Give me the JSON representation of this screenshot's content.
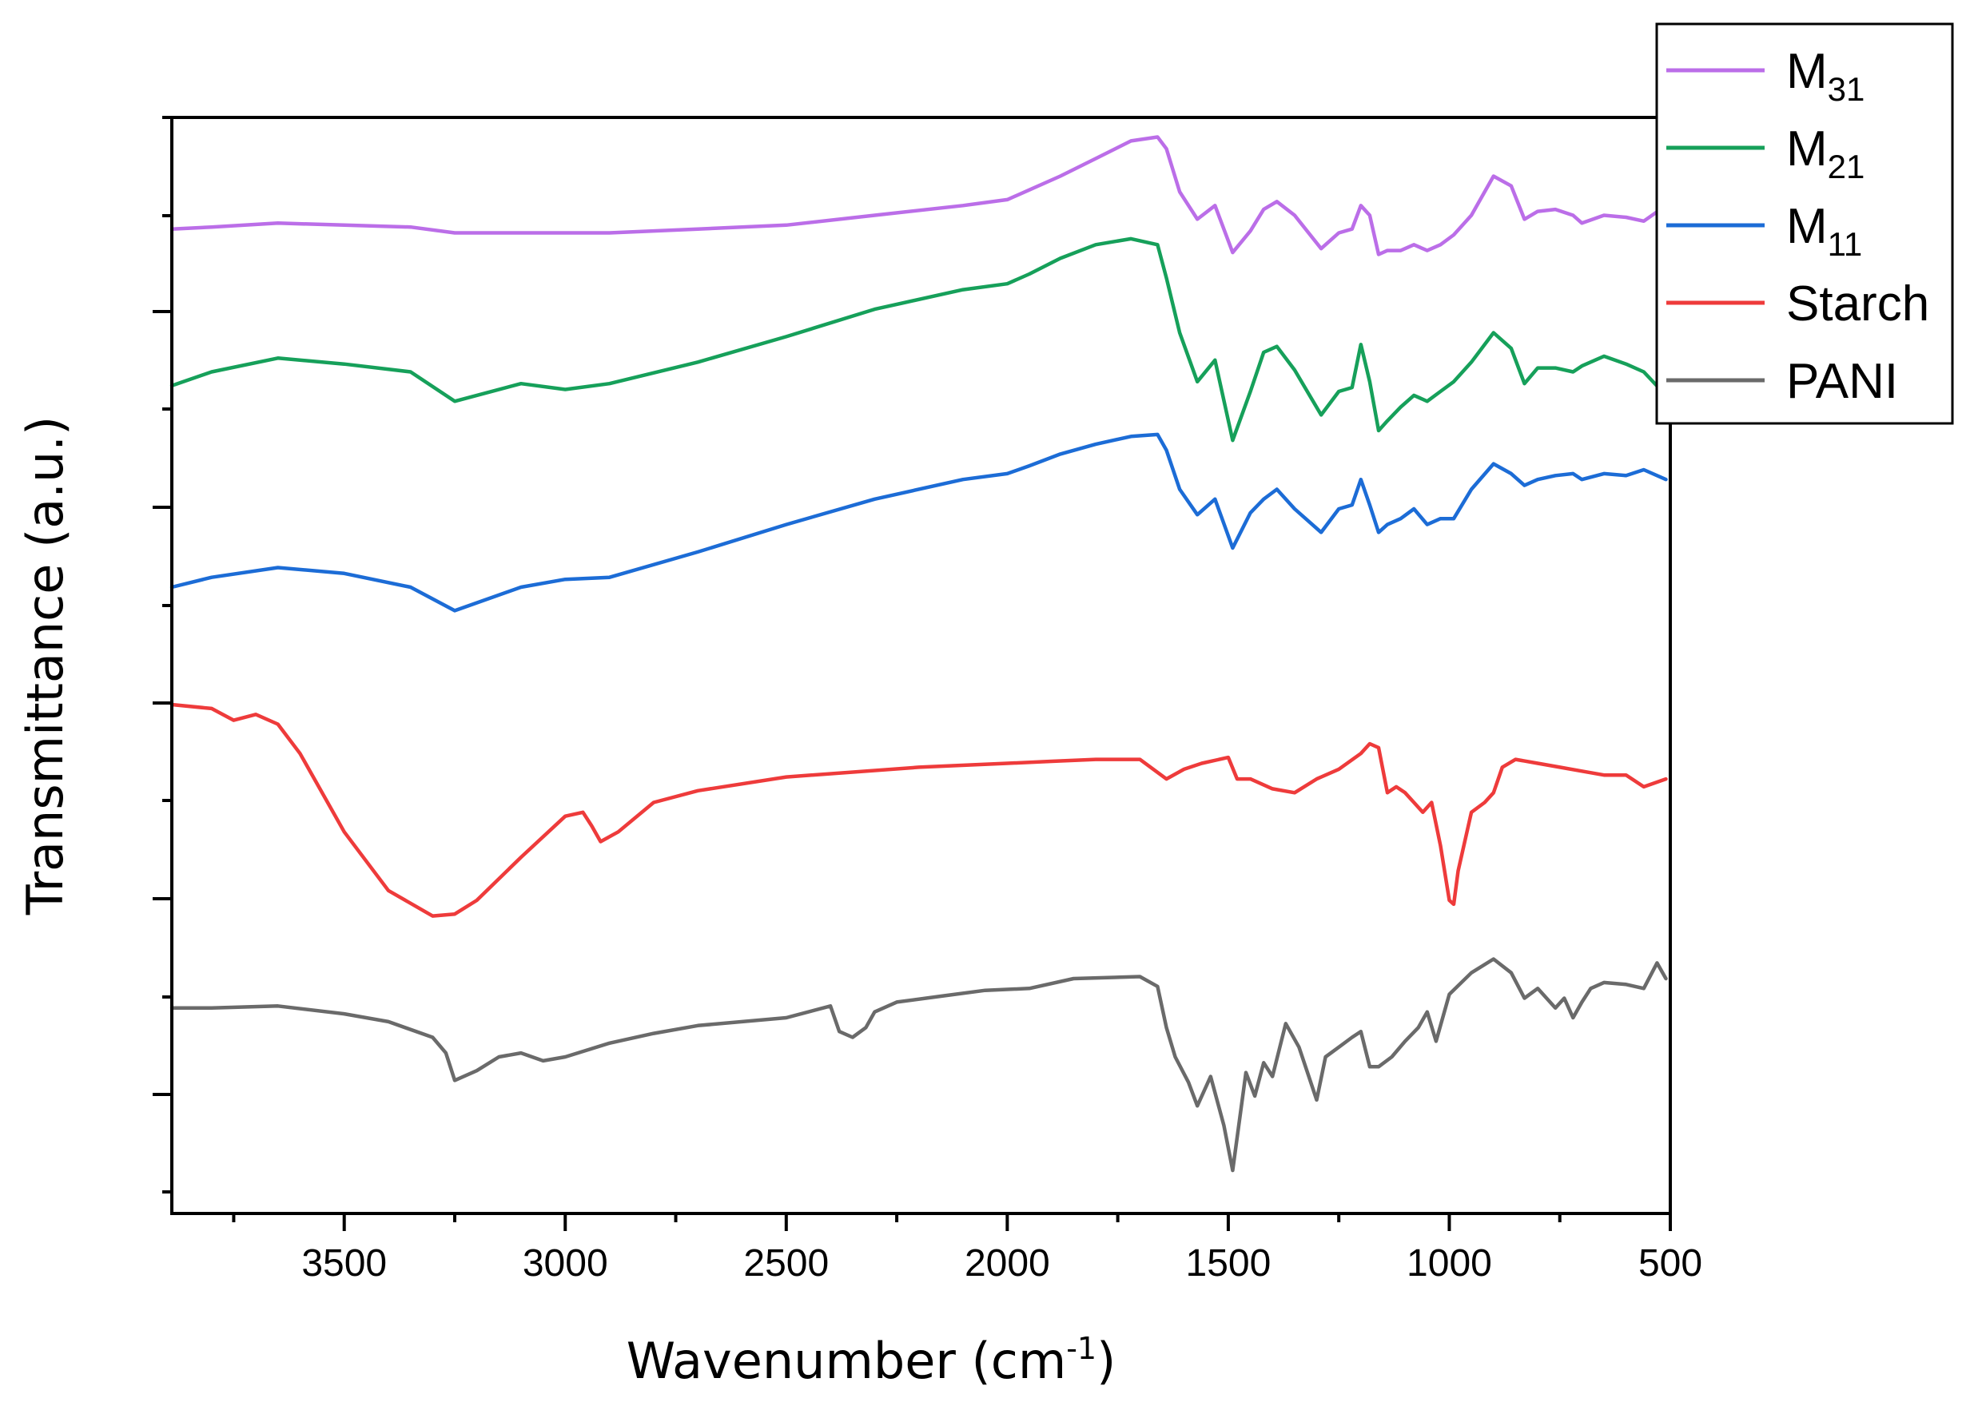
{
  "chart_data": {
    "type": "line",
    "xlabel": "Wavenumber (cm",
    "xlabel_sup": "-1",
    "xlabel_end": ")",
    "ylabel": "Transmittance (a.u.)",
    "xlim": [
      3890,
      500
    ],
    "x_ticks": [
      3500,
      3000,
      2500,
      2000,
      1500,
      1000,
      500
    ],
    "x_tick_labels": [
      "3500",
      "3000",
      "2500",
      "2000",
      "1500",
      "1000",
      "500"
    ],
    "y_ticks_labeled": false,
    "ylim": [
      -0.6,
      5.0
    ],
    "legend_position": "top-right",
    "series": [
      {
        "name": "M",
        "name_sub": "31",
        "color": "#bb6ee8",
        "x": [
          3890,
          3800,
          3650,
          3500,
          3350,
          3250,
          3100,
          3000,
          2900,
          2700,
          2500,
          2300,
          2100,
          2000,
          1950,
          1880,
          1800,
          1720,
          1660,
          1640,
          1610,
          1570,
          1530,
          1490,
          1450,
          1420,
          1390,
          1350,
          1290,
          1250,
          1220,
          1200,
          1180,
          1160,
          1140,
          1110,
          1080,
          1050,
          1020,
          990,
          950,
          900,
          860,
          830,
          800,
          760,
          720,
          700,
          650,
          600,
          560,
          510
        ],
        "y": [
          4.43,
          4.44,
          4.46,
          4.45,
          4.44,
          4.41,
          4.41,
          4.41,
          4.41,
          4.43,
          4.45,
          4.5,
          4.55,
          4.58,
          4.63,
          4.7,
          4.79,
          4.88,
          4.9,
          4.84,
          4.62,
          4.48,
          4.55,
          4.31,
          4.42,
          4.53,
          4.57,
          4.5,
          4.33,
          4.41,
          4.43,
          4.55,
          4.5,
          4.3,
          4.32,
          4.32,
          4.35,
          4.32,
          4.35,
          4.4,
          4.5,
          4.7,
          4.65,
          4.48,
          4.52,
          4.53,
          4.5,
          4.46,
          4.5,
          4.49,
          4.47,
          4.55
        ]
      },
      {
        "name": "M",
        "name_sub": "21",
        "color": "#16a05a",
        "x": [
          3890,
          3800,
          3650,
          3500,
          3350,
          3250,
          3100,
          3000,
          2900,
          2700,
          2500,
          2300,
          2100,
          2000,
          1950,
          1880,
          1800,
          1720,
          1660,
          1640,
          1610,
          1570,
          1530,
          1490,
          1450,
          1420,
          1390,
          1350,
          1290,
          1250,
          1220,
          1200,
          1180,
          1160,
          1140,
          1110,
          1080,
          1050,
          1020,
          990,
          950,
          900,
          860,
          830,
          800,
          760,
          720,
          700,
          650,
          600,
          560,
          510
        ],
        "y": [
          3.63,
          3.7,
          3.77,
          3.74,
          3.7,
          3.55,
          3.64,
          3.61,
          3.64,
          3.75,
          3.88,
          4.02,
          4.12,
          4.15,
          4.2,
          4.28,
          4.35,
          4.38,
          4.35,
          4.18,
          3.9,
          3.65,
          3.76,
          3.35,
          3.6,
          3.8,
          3.83,
          3.71,
          3.48,
          3.6,
          3.62,
          3.84,
          3.65,
          3.4,
          3.45,
          3.52,
          3.58,
          3.55,
          3.6,
          3.65,
          3.75,
          3.9,
          3.82,
          3.64,
          3.72,
          3.72,
          3.7,
          3.73,
          3.78,
          3.74,
          3.7,
          3.58
        ]
      },
      {
        "name": "M",
        "name_sub": "11",
        "color": "#1c6cd6",
        "x": [
          3890,
          3800,
          3650,
          3500,
          3350,
          3250,
          3100,
          3000,
          2900,
          2700,
          2500,
          2300,
          2100,
          2000,
          1950,
          1880,
          1800,
          1720,
          1660,
          1640,
          1610,
          1570,
          1530,
          1490,
          1450,
          1420,
          1390,
          1350,
          1290,
          1250,
          1220,
          1200,
          1180,
          1160,
          1140,
          1110,
          1080,
          1050,
          1020,
          990,
          950,
          900,
          860,
          830,
          800,
          760,
          720,
          700,
          650,
          600,
          560,
          510
        ],
        "y": [
          2.6,
          2.65,
          2.7,
          2.67,
          2.6,
          2.48,
          2.6,
          2.64,
          2.65,
          2.78,
          2.92,
          3.05,
          3.15,
          3.18,
          3.22,
          3.28,
          3.33,
          3.37,
          3.38,
          3.3,
          3.1,
          2.97,
          3.05,
          2.8,
          2.98,
          3.05,
          3.1,
          3.0,
          2.88,
          3.0,
          3.02,
          3.15,
          3.02,
          2.88,
          2.92,
          2.95,
          3.0,
          2.92,
          2.95,
          2.95,
          3.1,
          3.23,
          3.18,
          3.12,
          3.15,
          3.17,
          3.18,
          3.15,
          3.18,
          3.17,
          3.2,
          3.15
        ]
      },
      {
        "name": "Starch",
        "name_sub": "",
        "color": "#ee3b3b",
        "x": [
          3890,
          3800,
          3750,
          3700,
          3650,
          3600,
          3500,
          3400,
          3300,
          3250,
          3200,
          3100,
          3000,
          2960,
          2940,
          2920,
          2880,
          2800,
          2700,
          2500,
          2200,
          2000,
          1900,
          1800,
          1700,
          1640,
          1600,
          1560,
          1500,
          1480,
          1450,
          1400,
          1350,
          1300,
          1250,
          1200,
          1180,
          1160,
          1140,
          1120,
          1100,
          1080,
          1060,
          1040,
          1020,
          1000,
          990,
          980,
          950,
          920,
          900,
          880,
          850,
          800,
          750,
          700,
          650,
          600,
          560,
          510
        ],
        "y": [
          2.0,
          1.98,
          1.92,
          1.95,
          1.9,
          1.75,
          1.35,
          1.05,
          0.92,
          0.93,
          1.0,
          1.22,
          1.43,
          1.45,
          1.38,
          1.3,
          1.35,
          1.5,
          1.56,
          1.63,
          1.68,
          1.7,
          1.71,
          1.72,
          1.72,
          1.62,
          1.67,
          1.7,
          1.73,
          1.62,
          1.62,
          1.57,
          1.55,
          1.62,
          1.67,
          1.75,
          1.8,
          1.78,
          1.55,
          1.58,
          1.55,
          1.5,
          1.45,
          1.5,
          1.28,
          1.0,
          0.98,
          1.15,
          1.45,
          1.5,
          1.55,
          1.68,
          1.72,
          1.7,
          1.68,
          1.66,
          1.64,
          1.64,
          1.58,
          1.62
        ]
      },
      {
        "name": "PANI",
        "name_sub": "",
        "color": "#6a6a6a",
        "x": [
          3890,
          3800,
          3650,
          3500,
          3400,
          3300,
          3270,
          3250,
          3200,
          3150,
          3100,
          3050,
          3000,
          2900,
          2800,
          2700,
          2500,
          2400,
          2380,
          2350,
          2320,
          2300,
          2250,
          2150,
          2050,
          1950,
          1850,
          1700,
          1660,
          1640,
          1620,
          1590,
          1570,
          1540,
          1510,
          1490,
          1460,
          1440,
          1420,
          1400,
          1370,
          1340,
          1300,
          1280,
          1250,
          1220,
          1200,
          1180,
          1160,
          1130,
          1100,
          1070,
          1050,
          1030,
          1000,
          950,
          900,
          860,
          830,
          800,
          760,
          740,
          720,
          700,
          680,
          650,
          600,
          560,
          530,
          510
        ],
        "y": [
          0.45,
          0.45,
          0.46,
          0.42,
          0.38,
          0.3,
          0.22,
          0.08,
          0.13,
          0.2,
          0.22,
          0.18,
          0.2,
          0.27,
          0.32,
          0.36,
          0.4,
          0.46,
          0.33,
          0.3,
          0.35,
          0.43,
          0.48,
          0.51,
          0.54,
          0.55,
          0.6,
          0.61,
          0.56,
          0.35,
          0.2,
          0.07,
          -0.05,
          0.1,
          -0.15,
          -0.38,
          0.12,
          0.0,
          0.17,
          0.1,
          0.37,
          0.25,
          -0.02,
          0.2,
          0.25,
          0.3,
          0.33,
          0.15,
          0.15,
          0.2,
          0.28,
          0.35,
          0.43,
          0.28,
          0.52,
          0.63,
          0.7,
          0.63,
          0.5,
          0.55,
          0.45,
          0.5,
          0.4,
          0.48,
          0.55,
          0.58,
          0.57,
          0.55,
          0.68,
          0.6
        ]
      }
    ]
  }
}
